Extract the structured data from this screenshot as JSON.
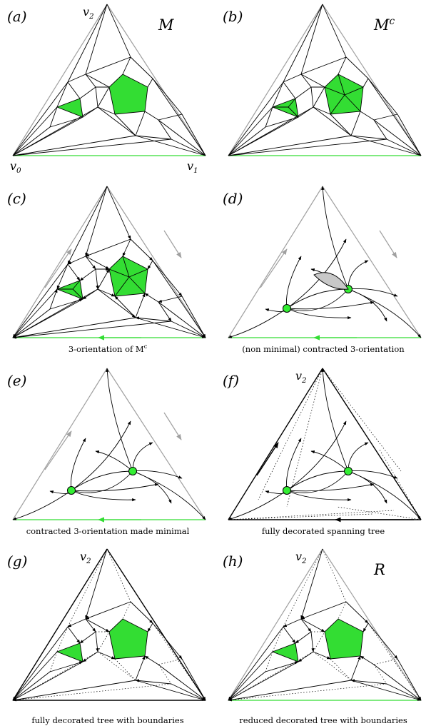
{
  "panels": [
    {
      "tag": "(a)",
      "title": "M",
      "caption": "",
      "labels": {
        "top": "v2",
        "left": "v0",
        "right": "v1"
      }
    },
    {
      "tag": "(b)",
      "title": "M^c",
      "caption": "",
      "labels": {}
    },
    {
      "tag": "(c)",
      "title": "",
      "caption": "3-orientation of M^c",
      "labels": {}
    },
    {
      "tag": "(d)",
      "title": "",
      "caption": "(non minimal) contracted 3-orientation",
      "labels": {}
    },
    {
      "tag": "(e)",
      "title": "",
      "caption": "contracted 3-orientation made minimal",
      "labels": {}
    },
    {
      "tag": "(f)",
      "title": "",
      "caption": "fully decorated spanning tree",
      "labels": {
        "top": "v2"
      }
    },
    {
      "tag": "(g)",
      "title": "",
      "caption": "fully decorated tree with boundaries",
      "labels": {
        "top": "v2"
      }
    },
    {
      "tag": "(h)",
      "title": "R",
      "caption": "reduced decorated tree with boundaries",
      "labels": {
        "top": "v2"
      }
    }
  ],
  "colors": {
    "face": "#33dd33",
    "outer_gray": "#a0a0a0",
    "edge": "#000000"
  }
}
